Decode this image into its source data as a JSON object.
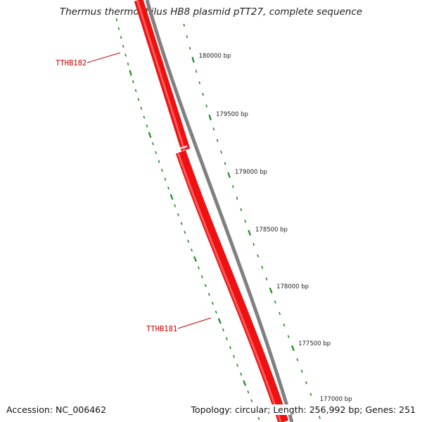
{
  "title": "Thermus thermophilus HB8 plasmid pTT27, complete sequence",
  "footer": {
    "accession": "Accession: NC_006462",
    "summary": "Topology: circular; Length: 256,992 bp; Genes: 251"
  },
  "colors": {
    "gene_fill": "#ee1111",
    "gene_highlight": "#ff7070",
    "backbone": "#808080",
    "tick": "#1e8a1e",
    "gene_label": "#cc0000",
    "text": "#222222"
  },
  "ticks": [
    {
      "position_bp": 180000,
      "label": "180000 bp"
    },
    {
      "position_bp": 179500,
      "label": "179500 bp"
    },
    {
      "position_bp": 179000,
      "label": "179000 bp"
    },
    {
      "position_bp": 178500,
      "label": "178500 bp"
    },
    {
      "position_bp": 178000,
      "label": "178000 bp"
    },
    {
      "position_bp": 177500,
      "label": "177500 bp"
    },
    {
      "position_bp": 177000,
      "label": "177000 bp"
    }
  ],
  "genes": [
    {
      "name": "TTHB182",
      "strand": "+"
    },
    {
      "name": "TTHB181",
      "strand": "+"
    }
  ]
}
